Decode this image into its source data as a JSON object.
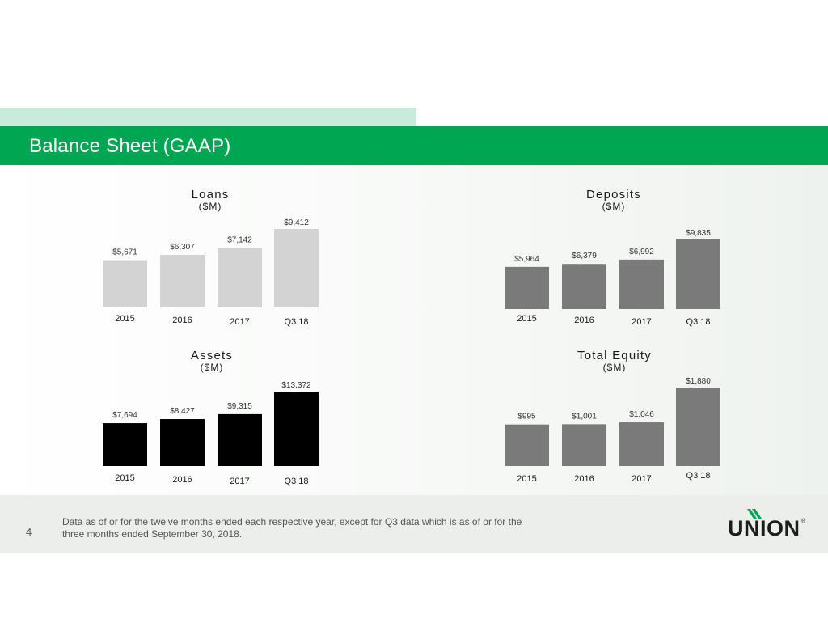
{
  "title": "Balance Sheet (GAAP)",
  "page_number": "4",
  "footnote": {
    "line1": "Data as of or for the twelve months ended each respective year, except for Q3 data which is as of or for the",
    "line2": "three months ended September 30, 2018."
  },
  "logo": {
    "name": "UNION",
    "registered": "®"
  },
  "colors": {
    "title_bar": "#00a652",
    "top_accent": "#c9ebdb",
    "loans_bars": "#d3d3d3",
    "deposits_bars": "#7a7a7a",
    "assets_bars": "#000000",
    "equity_bars": "#7a7a7a"
  },
  "chart_data": [
    {
      "type": "bar",
      "title": "Loans",
      "subtitle": "($M)",
      "categories": [
        "2015",
        "2016",
        "2017",
        "Q3 18"
      ],
      "values": [
        5671,
        6307,
        7142,
        9412
      ],
      "labels": [
        "$5,671",
        "$6,307",
        "$7,142",
        "$9,412"
      ],
      "color": "#d3d3d3",
      "ylim": [
        0,
        10000
      ]
    },
    {
      "type": "bar",
      "title": "Deposits",
      "subtitle": "($M)",
      "categories": [
        "2015",
        "2016",
        "2017",
        "Q3 18"
      ],
      "values": [
        5964,
        6379,
        6992,
        9835
      ],
      "labels": [
        "$5,964",
        "$6,379",
        "$6,992",
        "$9,835"
      ],
      "color": "#7a7a7a",
      "ylim": [
        0,
        10000
      ]
    },
    {
      "type": "bar",
      "title": "Assets",
      "subtitle": "($M)",
      "categories": [
        "2015",
        "2016",
        "2017",
        "Q3 18"
      ],
      "values": [
        7694,
        8427,
        9315,
        13372
      ],
      "labels": [
        "$7,694",
        "$8,427",
        "$9,315",
        "$13,372"
      ],
      "color": "#000000",
      "ylim": [
        0,
        14000
      ]
    },
    {
      "type": "bar",
      "title": "Total Equity",
      "subtitle": "($M)",
      "categories": [
        "2015",
        "2016",
        "2017",
        "Q3 18"
      ],
      "values": [
        995,
        1001,
        1046,
        1880
      ],
      "labels": [
        "$995",
        "$1,001",
        "$1,046",
        "$1,880"
      ],
      "color": "#7a7a7a",
      "ylim": [
        0,
        2000
      ]
    }
  ]
}
